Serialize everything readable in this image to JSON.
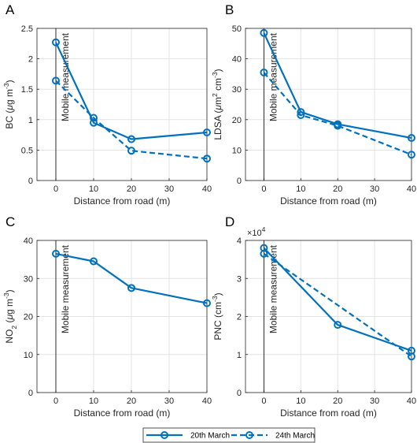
{
  "chart_data": [
    {
      "type": "line",
      "panel": "A",
      "xlabel": "Distance from road (m)",
      "ylabel": "BC (μg m⁻³)",
      "ylabel_parts": [
        [
          "BC (",
          ""
        ],
        [
          "μ",
          "i"
        ],
        [
          "g m",
          ""
        ],
        [
          "-3",
          "sup"
        ],
        [
          ")",
          ""
        ]
      ],
      "xlim": [
        -5,
        40
      ],
      "ylim": [
        0,
        2.5
      ],
      "xticks": [
        0,
        10,
        20,
        30,
        40
      ],
      "yticks": [
        0,
        0.5,
        1,
        1.5,
        2,
        2.5
      ],
      "ytick_labels": [
        "0",
        "0.5",
        "1",
        "1.5",
        "2",
        "2.5"
      ],
      "annotation": "Mobile measurement",
      "series": [
        {
          "name": "20th March",
          "x": [
            0,
            10,
            20,
            40
          ],
          "y": [
            2.27,
            0.95,
            0.68,
            0.79
          ]
        },
        {
          "name": "24th March",
          "x": [
            0,
            10,
            20,
            40
          ],
          "y": [
            1.64,
            1.03,
            0.49,
            0.36
          ]
        }
      ]
    },
    {
      "type": "line",
      "panel": "B",
      "xlabel": "Distance from road (m)",
      "ylabel": "LDSA (μm² cm⁻³)",
      "ylabel_parts": [
        [
          "LDSA (",
          ""
        ],
        [
          "μ",
          "i"
        ],
        [
          "m",
          ""
        ],
        [
          "2",
          "sup"
        ],
        [
          " cm",
          ""
        ],
        [
          "-3",
          "sup"
        ],
        [
          ")",
          ""
        ]
      ],
      "xlim": [
        -5,
        40
      ],
      "ylim": [
        0,
        50
      ],
      "xticks": [
        0,
        10,
        20,
        30,
        40
      ],
      "yticks": [
        0,
        10,
        20,
        30,
        40,
        50
      ],
      "ytick_labels": [
        "0",
        "10",
        "20",
        "30",
        "40",
        "50"
      ],
      "annotation": "Mobile measurement",
      "series": [
        {
          "name": "20th March",
          "x": [
            0,
            10,
            20,
            40
          ],
          "y": [
            48.5,
            22.5,
            18.5,
            14.0
          ]
        },
        {
          "name": "24th March",
          "x": [
            0,
            10,
            20,
            40
          ],
          "y": [
            35.5,
            21.5,
            18.0,
            8.5
          ]
        }
      ]
    },
    {
      "type": "line",
      "panel": "C",
      "xlabel": "Distance from road (m)",
      "ylabel": "NO₂ (μg m⁻³)",
      "ylabel_parts": [
        [
          "NO",
          ""
        ],
        [
          "2",
          "sub"
        ],
        [
          " (",
          ""
        ],
        [
          "μ",
          "i"
        ],
        [
          "g m",
          ""
        ],
        [
          "-3",
          "sup"
        ],
        [
          ")",
          ""
        ]
      ],
      "xlim": [
        -5,
        40
      ],
      "ylim": [
        0,
        40
      ],
      "xticks": [
        0,
        10,
        20,
        30,
        40
      ],
      "yticks": [
        0,
        10,
        20,
        30,
        40
      ],
      "ytick_labels": [
        "0",
        "10",
        "20",
        "30",
        "40"
      ],
      "annotation": "Mobile measurement",
      "series": [
        {
          "name": "20th March",
          "x": [
            0,
            10,
            20,
            40
          ],
          "y": [
            36.5,
            34.5,
            27.5,
            23.5
          ]
        }
      ]
    },
    {
      "type": "line",
      "panel": "D",
      "xlabel": "Distance from road (m)",
      "ylabel": "PNC (cm⁻³)",
      "ylabel_parts": [
        [
          "PNC (cm",
          ""
        ],
        [
          "-3",
          "sup"
        ],
        [
          ")",
          ""
        ]
      ],
      "xlim": [
        -5,
        40
      ],
      "ylim": [
        0,
        40000
      ],
      "xticks": [
        0,
        10,
        20,
        30,
        40
      ],
      "yticks": [
        0,
        10000,
        20000,
        30000,
        40000
      ],
      "ytick_labels": [
        "0",
        "1",
        "2",
        "3",
        "4"
      ],
      "exponent_label": "×10",
      "exponent_power": "4",
      "annotation": "Mobile measurement",
      "series": [
        {
          "name": "20th March",
          "x": [
            0,
            20,
            40
          ],
          "y": [
            38000,
            17800,
            11000
          ]
        },
        {
          "name": "24th March",
          "x": [
            0,
            40
          ],
          "y": [
            36500,
            9500
          ]
        }
      ]
    }
  ],
  "legend": {
    "placement": "bottom-center",
    "entries": [
      {
        "label": "20th March",
        "style": "solid"
      },
      {
        "label": "24th March",
        "style": "dashed"
      }
    ]
  },
  "colors": {
    "series": "#0072bd",
    "grid": "#e3e3e3",
    "axis": "#262626"
  }
}
